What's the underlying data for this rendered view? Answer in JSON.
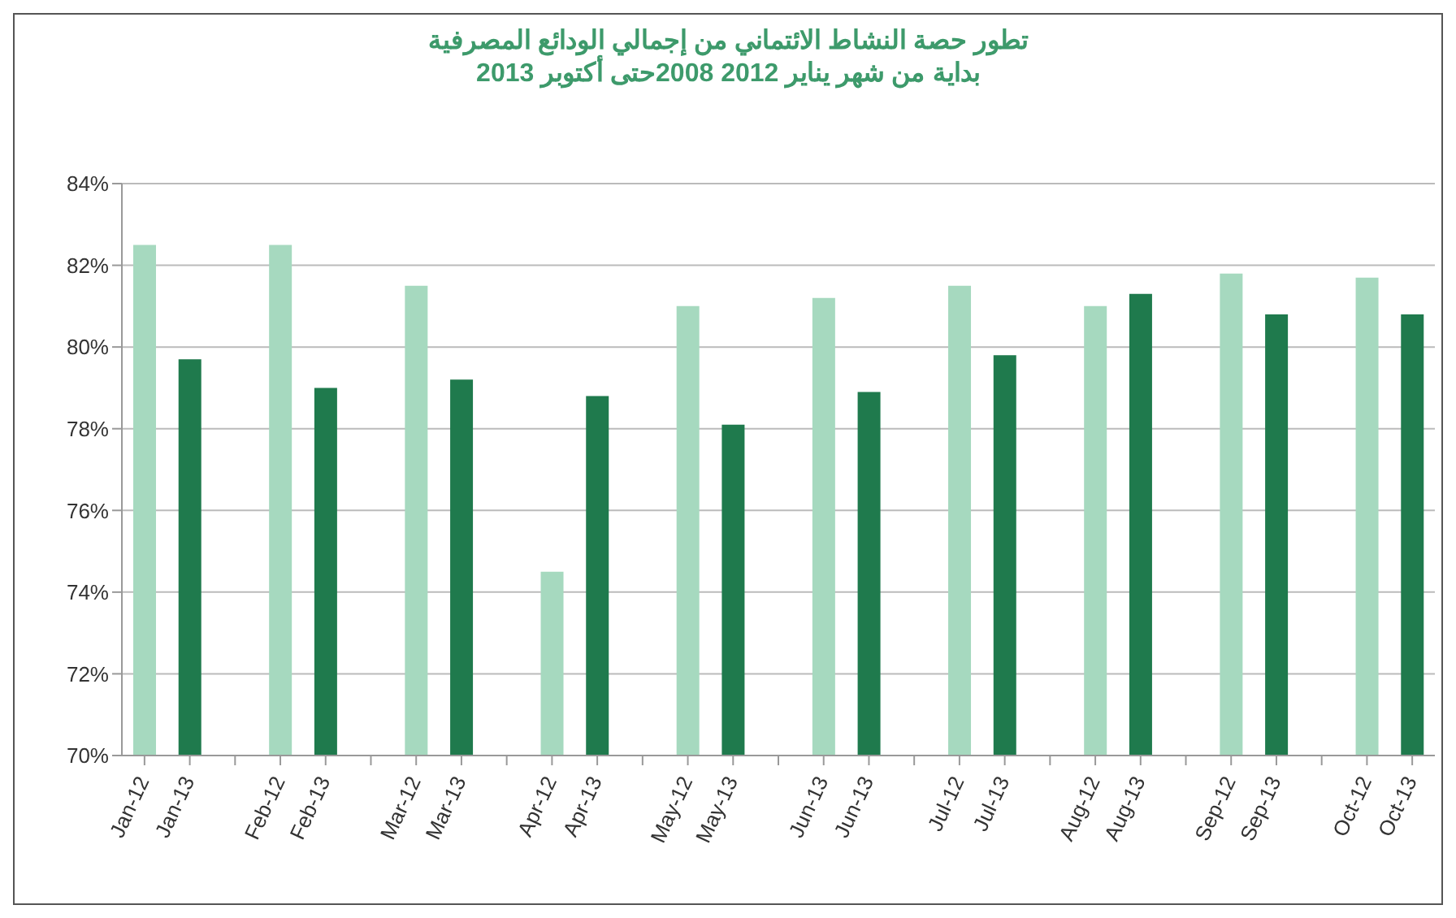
{
  "chart_data": {
    "type": "bar",
    "title": "تطور حصة النشاط الائتماني من إجمالي الودائع المصرفية",
    "subtitle": "بداية من شهر يناير 2012 2008حتى أكتوبر 2013",
    "categories": [
      "Jan-12",
      "Jan-13",
      null,
      "Feb-12",
      "Feb-13",
      null,
      "Mar-12",
      "Mar-13",
      null,
      "Apr-12",
      "Apr-13",
      null,
      "May-12",
      "May-13",
      null,
      "Jun-13",
      "Jun-13",
      null,
      "Jul-12",
      "Jul-13",
      null,
      "Aug-12",
      "Aug-13",
      null,
      "Sep-12",
      "Sep-13",
      null,
      "Oct-12",
      "Oct-13"
    ],
    "values": [
      82.5,
      79.7,
      null,
      82.5,
      79.0,
      null,
      81.5,
      79.2,
      null,
      74.5,
      78.8,
      null,
      81.0,
      78.1,
      null,
      81.2,
      78.9,
      null,
      81.5,
      79.8,
      null,
      81.0,
      81.3,
      null,
      81.8,
      80.8,
      null,
      81.7,
      80.8
    ],
    "colors": [
      "#a6d9bf",
      "#1f7a4d",
      null,
      "#a6d9bf",
      "#1f7a4d",
      null,
      "#a6d9bf",
      "#1f7a4d",
      null,
      "#a6d9bf",
      "#1f7a4d",
      null,
      "#a6d9bf",
      "#1f7a4d",
      null,
      "#a6d9bf",
      "#1f7a4d",
      null,
      "#a6d9bf",
      "#1f7a4d",
      null,
      "#a6d9bf",
      "#1f7a4d",
      null,
      "#a6d9bf",
      "#1f7a4d",
      null,
      "#a6d9bf",
      "#1f7a4d"
    ],
    "ylim": [
      70,
      84
    ],
    "yticks": [
      {
        "value": 70,
        "label": "70%"
      },
      {
        "value": 72,
        "label": "72%"
      },
      {
        "value": 74,
        "label": "74%"
      },
      {
        "value": 76,
        "label": "76%"
      },
      {
        "value": 78,
        "label": "78%"
      },
      {
        "value": 80,
        "label": "80%"
      },
      {
        "value": 82,
        "label": "82%"
      },
      {
        "value": 84,
        "label": "84%"
      }
    ],
    "grid": "y",
    "legend": false
  }
}
